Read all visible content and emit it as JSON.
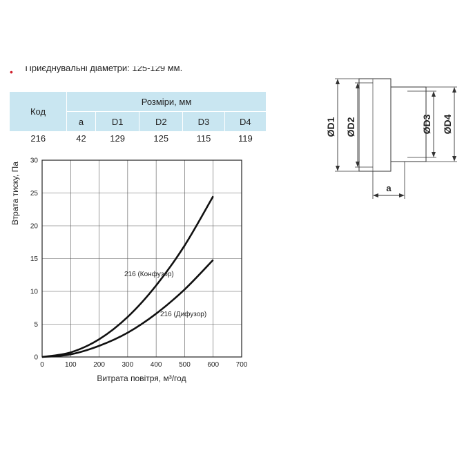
{
  "note": "Приєднувальні діаметри: 125-129 мм.",
  "table": {
    "code_header": "Код",
    "dims_header": "Розміри, мм",
    "columns": [
      "a",
      "D1",
      "D2",
      "D3",
      "D4"
    ],
    "row": {
      "code": "216",
      "values": [
        "42",
        "129",
        "125",
        "115",
        "119"
      ]
    }
  },
  "drawing": {
    "labels": {
      "d1": "ØD1",
      "d2": "ØD2",
      "d3": "ØD3",
      "d4": "ØD4",
      "a": "a"
    }
  },
  "chart_data": {
    "type": "line",
    "xlabel": "Витрата повітря, м³/год",
    "ylabel": "Втрата тиску, Па",
    "xlim": [
      0,
      700
    ],
    "ylim": [
      0,
      30
    ],
    "xticks": [
      0,
      100,
      200,
      300,
      400,
      500,
      600,
      700
    ],
    "yticks": [
      0,
      5,
      10,
      15,
      20,
      25,
      30
    ],
    "grid": true,
    "series": [
      {
        "name": "216 (Конфузор)",
        "x": [
          0,
          100,
          200,
          300,
          400,
          500,
          600
        ],
        "y": [
          0,
          0.7,
          2.7,
          6.1,
          10.9,
          17.0,
          24.5
        ],
        "color": "#111111"
      },
      {
        "name": "216 (Дифузор)",
        "x": [
          0,
          100,
          200,
          300,
          400,
          500,
          600
        ],
        "y": [
          0,
          0.4,
          1.7,
          3.7,
          6.6,
          10.3,
          14.8
        ],
        "color": "#111111"
      }
    ]
  }
}
